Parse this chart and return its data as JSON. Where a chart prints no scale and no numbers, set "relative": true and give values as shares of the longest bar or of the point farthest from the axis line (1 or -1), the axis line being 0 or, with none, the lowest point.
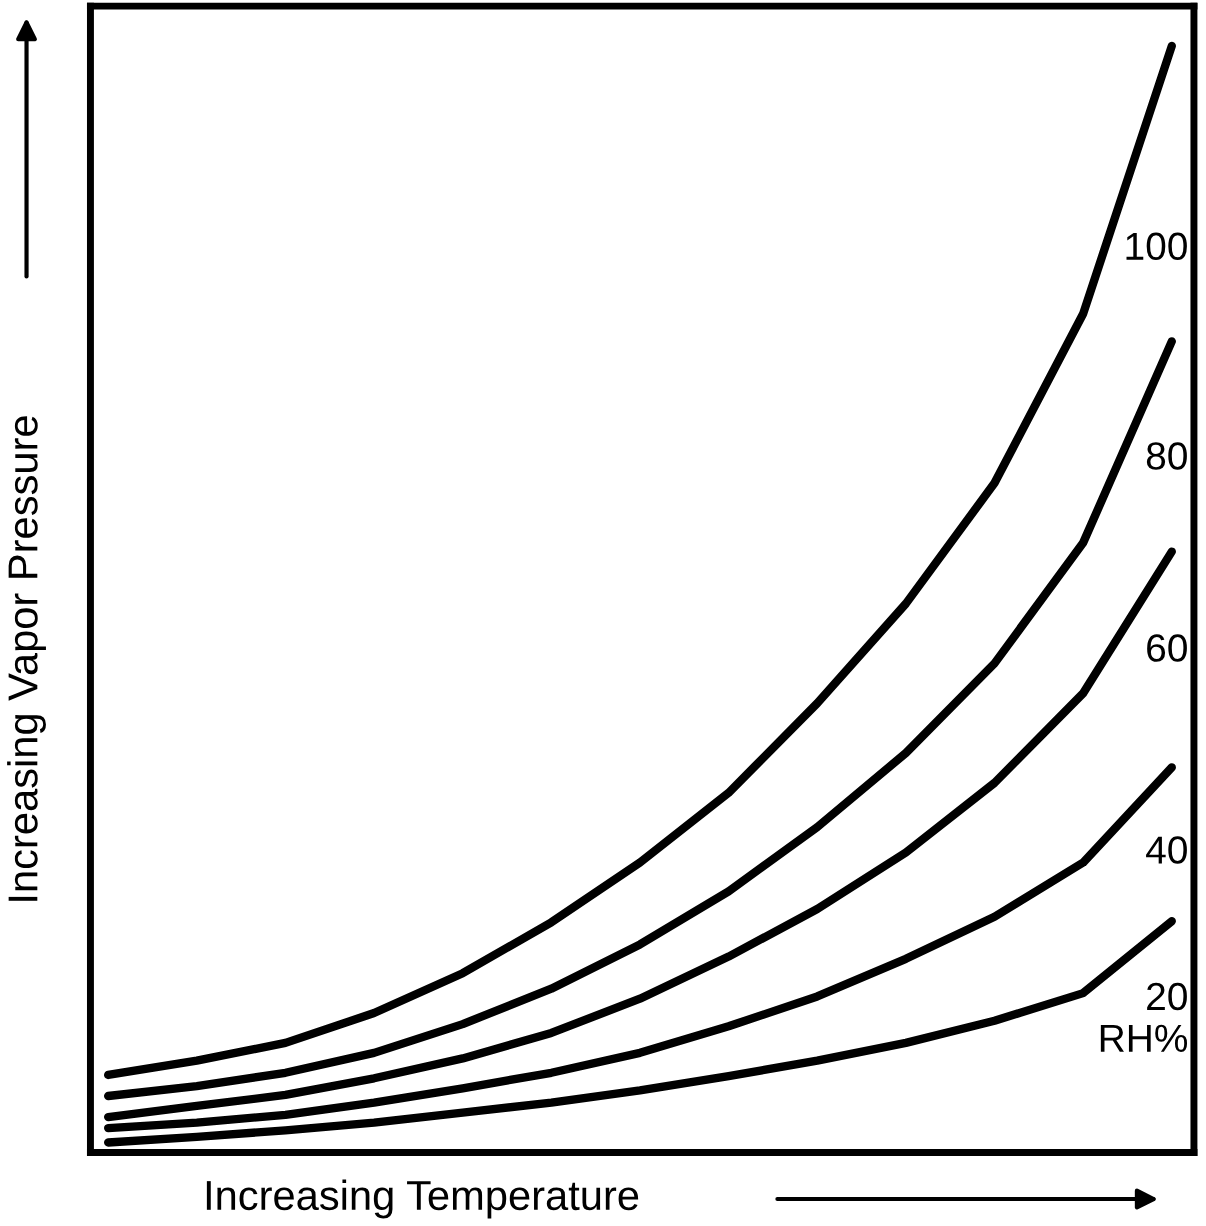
{
  "chart_data": {
    "type": "line",
    "relative": true,
    "xlabel": "Increasing Temperature",
    "ylabel": "Increasing Vapor Pressure",
    "categories": [
      null,
      null,
      null,
      null,
      null,
      null,
      null,
      null,
      null,
      null,
      null,
      null,
      null
    ],
    "series": [
      {
        "name": "100",
        "color": "#000000",
        "values": [
          0.07,
          0.083,
          0.099,
          0.126,
          0.162,
          0.208,
          0.262,
          0.325,
          0.406,
          0.496,
          0.605,
          0.758,
          1.0
        ]
      },
      {
        "name": "80",
        "color": "#000000",
        "values": [
          0.051,
          0.06,
          0.072,
          0.09,
          0.116,
          0.148,
          0.188,
          0.236,
          0.294,
          0.361,
          0.442,
          0.551,
          0.733
        ]
      },
      {
        "name": "60",
        "color": "#000000",
        "values": [
          0.032,
          0.042,
          0.052,
          0.067,
          0.085,
          0.108,
          0.139,
          0.177,
          0.22,
          0.271,
          0.334,
          0.415,
          0.543
        ]
      },
      {
        "name": "40",
        "color": "#000000",
        "values": [
          0.022,
          0.027,
          0.034,
          0.045,
          0.058,
          0.072,
          0.09,
          0.114,
          0.141,
          0.175,
          0.213,
          0.262,
          0.348
        ]
      },
      {
        "name": "20",
        "color": "#000000",
        "values": [
          0.009,
          0.014,
          0.02,
          0.027,
          0.036,
          0.045,
          0.056,
          0.069,
          0.083,
          0.099,
          0.119,
          0.144,
          0.209
        ]
      }
    ],
    "annotations": [
      "RH%"
    ],
    "line_style": "solid",
    "marker": "none"
  }
}
